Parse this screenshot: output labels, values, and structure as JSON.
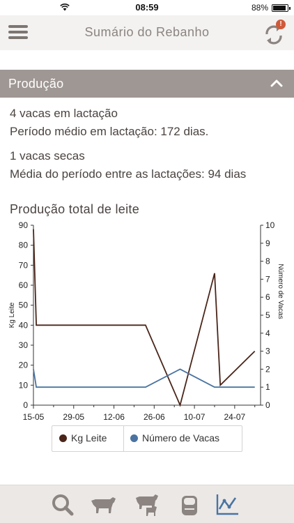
{
  "status_bar": {
    "time": "08:59",
    "battery": "88%"
  },
  "nav": {
    "title": "Sumário do Rebanho",
    "sync_badge": "!"
  },
  "section": {
    "title": "Produção"
  },
  "summary": {
    "lactating": "4 vacas em lactação",
    "avg_lactation_period": "Período médio em lactação: 172 dias.",
    "dry": "1 vacas secas",
    "avg_between_lactations": "Média do período entre as lactações: 94 dias"
  },
  "chart_data": {
    "type": "line",
    "title": "Produção total de leite",
    "xlabel": "",
    "x_ticks": [
      "15-05",
      "29-05",
      "12-06",
      "26-06",
      "10-07",
      "24-07"
    ],
    "y_left": {
      "label": "Kg Leite",
      "ticks": [
        0,
        10,
        20,
        30,
        40,
        50,
        60,
        70,
        80,
        90
      ],
      "ylim": [
        0,
        90
      ]
    },
    "y_right": {
      "label": "Número de Vacas",
      "ticks": [
        0,
        1,
        2,
        3,
        4,
        5,
        6,
        7,
        8,
        9,
        10
      ],
      "ylim": [
        0,
        10
      ]
    },
    "grid": false,
    "legend_position": "bottom",
    "series": [
      {
        "name": "Kg Leite",
        "axis": "left",
        "color": "#4a2519",
        "x": [
          "15-05",
          "16-05",
          "23-06",
          "05-07",
          "17-07",
          "19-07",
          "31-07"
        ],
        "values": [
          88,
          40,
          40,
          0,
          66,
          10,
          27
        ]
      },
      {
        "name": "Número de Vacas",
        "axis": "right",
        "color": "#4a73a1",
        "x": [
          "15-05",
          "16-05",
          "23-06",
          "05-07",
          "17-07",
          "19-07",
          "31-07"
        ],
        "values": [
          2,
          1,
          1,
          2,
          1,
          1,
          1
        ]
      }
    ]
  },
  "tabs": [
    {
      "icon": "search-icon"
    },
    {
      "icon": "cow-icon"
    },
    {
      "icon": "cow-calf-icon"
    },
    {
      "icon": "milk-tank-icon"
    },
    {
      "icon": "chart-icon"
    }
  ]
}
